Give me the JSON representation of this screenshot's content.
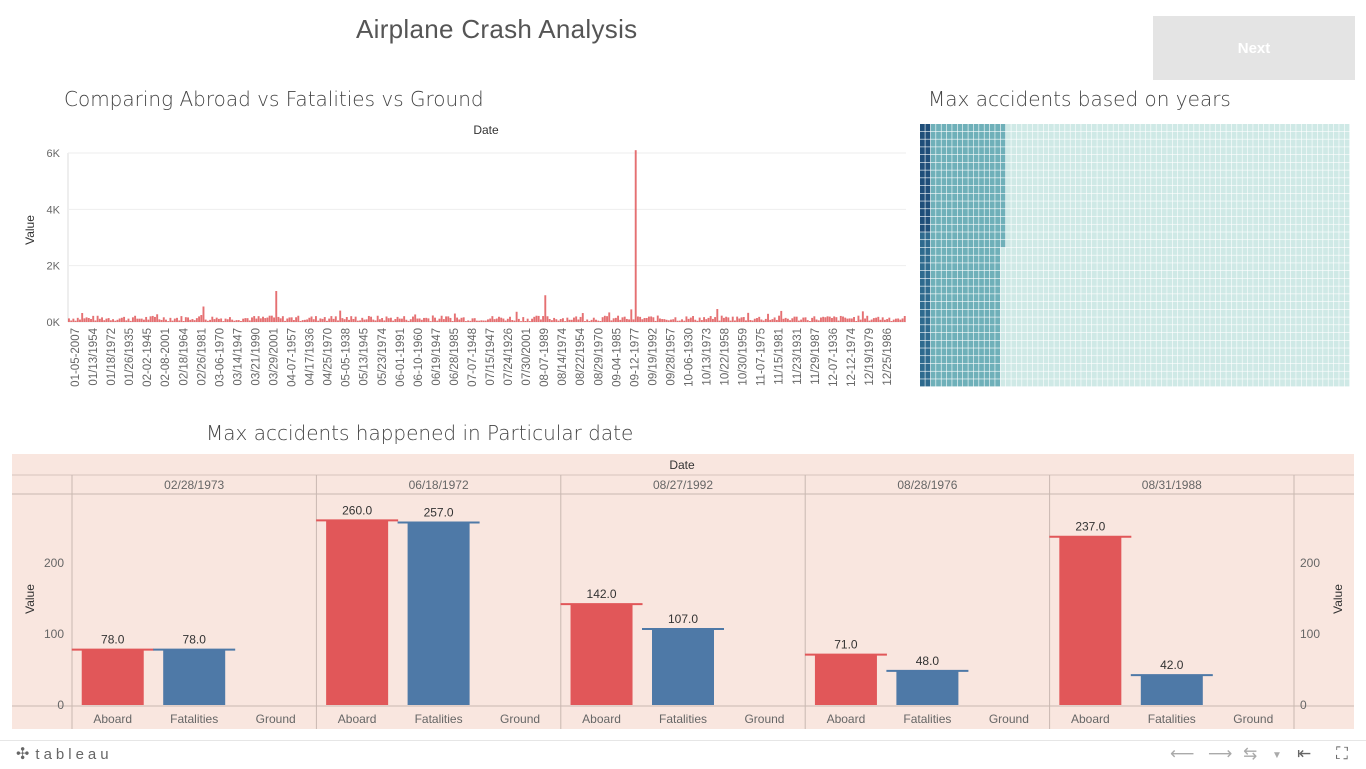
{
  "dashboard": {
    "title": "Airplane Crash Analysis",
    "next_label": "Next"
  },
  "colors": {
    "aboard": "#e15759",
    "fatalities": "#4e79a7",
    "panel_bg": "#f9e6df",
    "heat_dark": "#1f4e79",
    "heat_mid": "#6fb0b9",
    "heat_light": "#cfe9e6"
  },
  "sheet1": {
    "title": "Comparing Abroad vs Fatalities vs Ground",
    "chart_data": {
      "type": "bar",
      "xlabel": "Date",
      "ylabel": "Value",
      "ylim": [
        0,
        6200
      ],
      "yticks": [
        "0K",
        "2K",
        "4K",
        "6K"
      ],
      "x_tick_labels": [
        "01-05-2007",
        "01/13/1954",
        "01/18/1972",
        "01/26/1935",
        "02-02-1945",
        "02-08-2001",
        "02/18/1964",
        "02/26/1981",
        "03-06-1970",
        "03/14/1947",
        "03/21/1990",
        "03/29/2001",
        "04-07-1957",
        "04/17/1936",
        "04/25/1970",
        "05-05-1938",
        "05/13/1945",
        "05/23/1974",
        "06-01-1991",
        "06-10-1960",
        "06/19/1947",
        "06/28/1985",
        "07-07-1948",
        "07/15/1947",
        "07/24/1926",
        "07/30/2001",
        "08-07-1989",
        "08/14/1974",
        "08/22/1954",
        "08/29/1970",
        "09-04-1985",
        "09-12-1977",
        "09/19/1992",
        "09/28/1957",
        "10-06-1930",
        "10/13/1973",
        "10/22/1958",
        "10/30/1959",
        "11-07-1975",
        "11/15/1981",
        "11/23/1931",
        "11/29/1987",
        "12-07-1936",
        "12-12-1974",
        "12/19/1979",
        "12/25/1986"
      ],
      "spikes": [
        {
          "date": "09-12-1977",
          "value": 6100
        },
        {
          "date": "03/29/2001",
          "value": 1100
        },
        {
          "date": "08-07-1989",
          "value": 950
        },
        {
          "date": "02/26/1981",
          "value": 550
        }
      ],
      "typical_value": 200
    }
  },
  "sheet2": {
    "title": "Max accidents based on years",
    "chart_data": {
      "type": "heatmap"
    }
  },
  "sheet3": {
    "title": "Max accidents happened in Particular date",
    "chart_data": {
      "type": "bar",
      "xlabel": "Date",
      "ylabel": "Value",
      "ylim": [
        0,
        270
      ],
      "yticks": [
        0,
        100,
        200
      ],
      "categories": [
        "Aboard",
        "Fatalities",
        "Ground"
      ],
      "groups": [
        {
          "date": "02/28/1973",
          "values": [
            78.0,
            78.0,
            null
          ],
          "labels": [
            "78.0",
            "78.0",
            ""
          ]
        },
        {
          "date": "06/18/1972",
          "values": [
            260.0,
            257.0,
            null
          ],
          "labels": [
            "260.0",
            "257.0",
            ""
          ]
        },
        {
          "date": "08/27/1992",
          "values": [
            142.0,
            107.0,
            null
          ],
          "labels": [
            "142.0",
            "107.0",
            ""
          ]
        },
        {
          "date": "08/28/1976",
          "values": [
            71.0,
            48.0,
            null
          ],
          "labels": [
            "71.0",
            "48.0",
            ""
          ]
        },
        {
          "date": "08/31/1988",
          "values": [
            237.0,
            42.0,
            null
          ],
          "labels": [
            "237.0",
            "42.0",
            ""
          ]
        }
      ]
    }
  },
  "footer": {
    "brand": "tableau"
  }
}
